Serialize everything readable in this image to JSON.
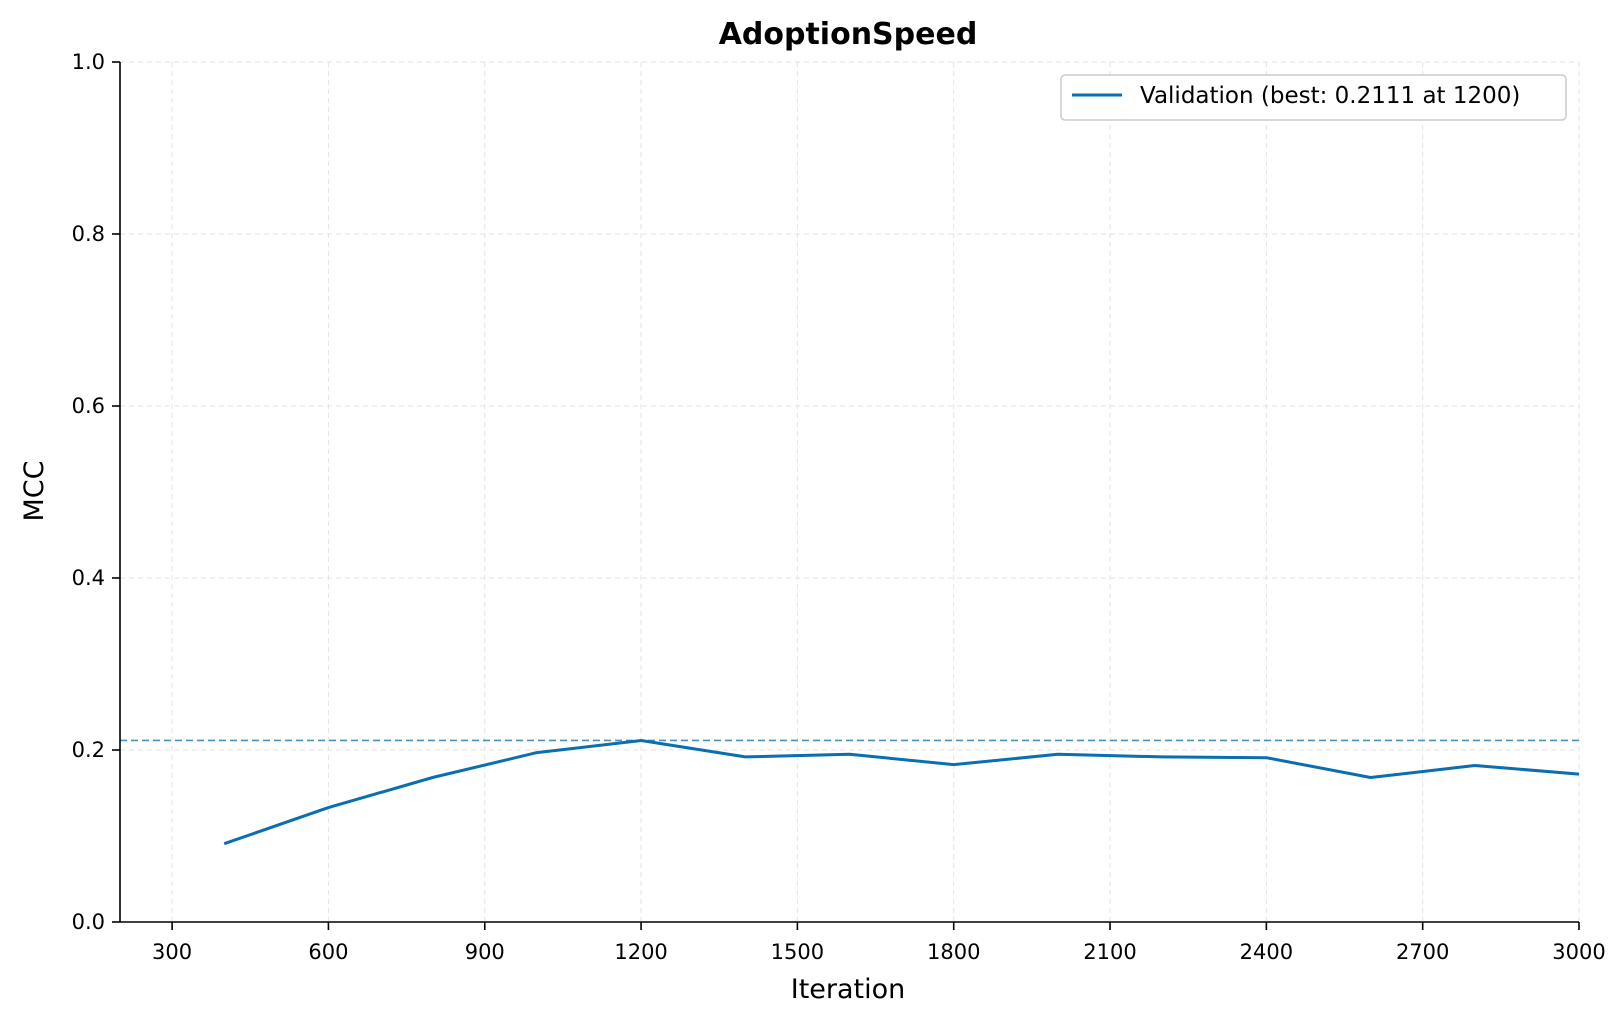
{
  "chart_data": {
    "type": "line",
    "title": "AdoptionSpeed",
    "xlabel": "Iteration",
    "ylabel": "MCC",
    "xlim": [
      200,
      3000
    ],
    "ylim": [
      0.0,
      1.0
    ],
    "xticks": [
      300,
      600,
      900,
      1200,
      1500,
      1800,
      2100,
      2400,
      2700,
      3000
    ],
    "yticks": [
      0.0,
      0.2,
      0.4,
      0.6,
      0.8,
      1.0
    ],
    "ytick_labels": [
      "0.0",
      "0.2",
      "0.4",
      "0.6",
      "0.8",
      "1.0"
    ],
    "grid": true,
    "legend_position": "top-right",
    "series": [
      {
        "name": "Validation (best: 0.2111 at 1200)",
        "color": "#0a6eaf",
        "x": [
          400,
          600,
          800,
          1000,
          1200,
          1400,
          1600,
          1800,
          2000,
          2200,
          2400,
          2600,
          2800,
          3000
        ],
        "y": [
          0.091,
          0.133,
          0.168,
          0.197,
          0.2111,
          0.192,
          0.195,
          0.183,
          0.195,
          0.192,
          0.191,
          0.168,
          0.182,
          0.172
        ]
      }
    ],
    "reference_lines": [
      {
        "y": 0.2111,
        "color": "#4a90bd",
        "style": "dashed"
      }
    ]
  }
}
